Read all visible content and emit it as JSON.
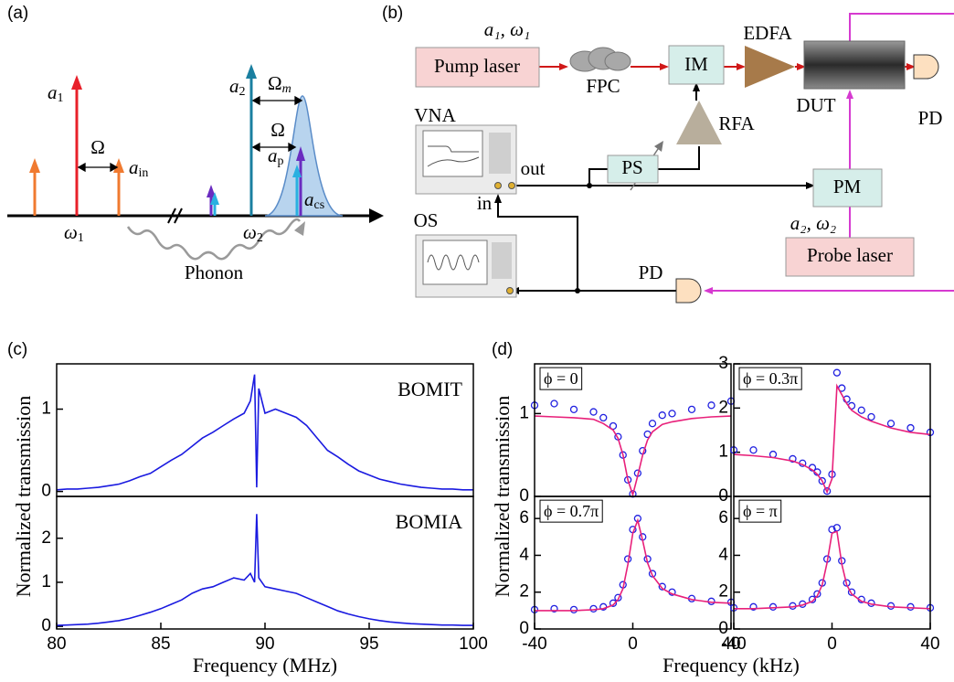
{
  "diagram_a": {
    "label": "(a)",
    "a1": {
      "main": "a",
      "sub": "1"
    },
    "Omega_left": "Ω",
    "a_in": {
      "main": "a",
      "sub": "in"
    },
    "omega1": {
      "main": "ω",
      "sub": "1"
    },
    "a2": {
      "main": "a",
      "sub": "2"
    },
    "Omega_m": {
      "main": "Ω",
      "sub": "m"
    },
    "Omega_right": "Ω",
    "a_p": {
      "main": "a",
      "sub": "p"
    },
    "a_cs": {
      "main": "a",
      "sub": "cs"
    },
    "omega2": {
      "main": "ω",
      "sub": "2"
    },
    "phonon": "Phonon"
  },
  "diagram_b": {
    "label": "(b)",
    "pump_params": "a₁, ω₁",
    "pump_laser": "Pump laser",
    "fpc": "FPC",
    "im": "IM",
    "edfa": "EDFA",
    "dut": "DUT",
    "pd_top": "PD",
    "rfa": "RFA",
    "vna": "VNA",
    "out": "out",
    "in": "in",
    "ps": "PS",
    "pm": "PM",
    "probe_params": "a₂, ω₂",
    "probe_laser": "Probe laser",
    "os": "OS",
    "pd_bottom": "PD"
  },
  "panels": {
    "c": {
      "label": "(c)",
      "ylabel": "Normalized transmission",
      "xlabel": "Frequency (MHz)"
    },
    "d": {
      "label": "(d)",
      "ylabel": "Normalized transmission",
      "xlabel": "Frequency (kHz)"
    }
  },
  "chart_data": [
    {
      "type": "line",
      "label": "BOMIT",
      "xlim": [
        80,
        100
      ],
      "ylim": [
        -0.06,
        1.55
      ],
      "yticks": [
        0,
        1
      ],
      "x": [
        80,
        80.5,
        81,
        81.5,
        82,
        82.5,
        83,
        83.5,
        84,
        84.5,
        85,
        85.5,
        86,
        86.5,
        87,
        87.5,
        88,
        88.5,
        89,
        89.3,
        89.5,
        89.6,
        89.7,
        90,
        90.5,
        91,
        91.5,
        92,
        92.5,
        93,
        93.5,
        94,
        94.5,
        95,
        95.5,
        96,
        96.5,
        97,
        97.5,
        98,
        98.5,
        99,
        99.5,
        100
      ],
      "series": [
        {
          "color": "#1a1ae0",
          "style": "line",
          "values": [
            0.02,
            0.03,
            0.03,
            0.04,
            0.05,
            0.07,
            0.09,
            0.13,
            0.18,
            0.22,
            0.3,
            0.38,
            0.45,
            0.55,
            0.65,
            0.72,
            0.8,
            0.88,
            0.95,
            1.1,
            1.42,
            0.05,
            1.25,
            0.95,
            1.0,
            0.95,
            0.9,
            0.8,
            0.65,
            0.5,
            0.42,
            0.33,
            0.25,
            0.2,
            0.15,
            0.12,
            0.09,
            0.07,
            0.05,
            0.04,
            0.03,
            0.03,
            0.02,
            0.02
          ]
        }
      ]
    },
    {
      "type": "line",
      "label": "BOMIA",
      "xlim": [
        80,
        100
      ],
      "ylim": [
        -0.06,
        2.95
      ],
      "yticks": [
        0,
        1,
        2
      ],
      "xticks": [
        80,
        85,
        90,
        95,
        100
      ],
      "x": [
        80,
        80.5,
        81,
        81.5,
        82,
        82.5,
        83,
        83.5,
        84,
        84.5,
        85,
        85.5,
        86,
        86.5,
        87,
        87.5,
        88,
        88.5,
        89,
        89.3,
        89.5,
        89.6,
        89.7,
        90,
        90.5,
        91,
        91.5,
        92,
        92.5,
        93,
        93.5,
        94,
        94.5,
        95,
        95.5,
        96,
        96.5,
        97,
        97.5,
        98,
        98.5,
        99,
        99.5,
        100
      ],
      "series": [
        {
          "color": "#1a1ae0",
          "style": "line",
          "values": [
            0.02,
            0.03,
            0.04,
            0.05,
            0.07,
            0.1,
            0.13,
            0.18,
            0.25,
            0.32,
            0.4,
            0.5,
            0.6,
            0.75,
            0.85,
            0.9,
            1.0,
            1.1,
            1.05,
            1.2,
            1.0,
            2.55,
            1.1,
            0.9,
            0.85,
            0.8,
            0.75,
            0.65,
            0.55,
            0.45,
            0.35,
            0.28,
            0.22,
            0.17,
            0.13,
            0.1,
            0.08,
            0.06,
            0.05,
            0.04,
            0.03,
            0.03,
            0.02,
            0.02
          ]
        }
      ]
    },
    {
      "type": "line",
      "label": "ϕ = 0",
      "xlim": [
        -40,
        40
      ],
      "ylim": [
        0,
        1.6
      ],
      "yticks": [
        0,
        1
      ],
      "x": [
        -40,
        -32,
        -24,
        -16,
        -12,
        -8,
        -6,
        -4,
        -2,
        0,
        2,
        4,
        6,
        8,
        12,
        16,
        24,
        32,
        40
      ],
      "series": [
        {
          "color": "#2020e0",
          "style": "markers",
          "values": [
            1.1,
            1.12,
            1.05,
            1.02,
            0.95,
            0.85,
            0.72,
            0.5,
            0.2,
            0.03,
            0.28,
            0.55,
            0.75,
            0.88,
            0.98,
            1.0,
            1.05,
            1.1,
            1.15
          ]
        },
        {
          "color": "#e8207a",
          "style": "line",
          "values": [
            0.97,
            0.96,
            0.95,
            0.93,
            0.88,
            0.8,
            0.7,
            0.5,
            0.2,
            0.02,
            0.25,
            0.5,
            0.68,
            0.78,
            0.87,
            0.9,
            0.94,
            0.96,
            0.97
          ]
        }
      ]
    },
    {
      "type": "line",
      "label": "ϕ = 0.3π",
      "xlim": [
        -40,
        40
      ],
      "ylim": [
        0,
        3
      ],
      "yticks": [
        0,
        1,
        2,
        3
      ],
      "x": [
        -40,
        -32,
        -24,
        -16,
        -12,
        -8,
        -6,
        -4,
        -2,
        0,
        2,
        4,
        6,
        8,
        12,
        16,
        24,
        32,
        40
      ],
      "series": [
        {
          "color": "#2020e0",
          "style": "markers",
          "values": [
            1.05,
            1.05,
            0.95,
            0.85,
            0.75,
            0.65,
            0.55,
            0.35,
            0.12,
            0.5,
            2.8,
            2.45,
            2.2,
            2.05,
            1.95,
            1.8,
            1.65,
            1.55,
            1.45
          ]
        },
        {
          "color": "#e8207a",
          "style": "line",
          "values": [
            0.95,
            0.92,
            0.88,
            0.8,
            0.72,
            0.6,
            0.5,
            0.35,
            0.1,
            0.4,
            2.5,
            2.3,
            2.1,
            1.95,
            1.8,
            1.7,
            1.55,
            1.45,
            1.4
          ]
        }
      ]
    },
    {
      "type": "line",
      "label": "ϕ = 0.7π",
      "xlim": [
        -40,
        40
      ],
      "ylim": [
        0,
        7.2
      ],
      "yticks": [
        0,
        2,
        4,
        6
      ],
      "xticks": [
        -40,
        0,
        40
      ],
      "x": [
        -40,
        -32,
        -24,
        -16,
        -12,
        -8,
        -6,
        -4,
        -2,
        0,
        2,
        4,
        6,
        8,
        12,
        16,
        24,
        32,
        40
      ],
      "series": [
        {
          "color": "#2020e0",
          "style": "markers",
          "values": [
            1.05,
            1.1,
            1.05,
            1.1,
            1.2,
            1.4,
            1.7,
            2.4,
            3.8,
            5.4,
            6.0,
            5.0,
            3.8,
            3.0,
            2.3,
            2.0,
            1.65,
            1.5,
            1.45
          ]
        },
        {
          "color": "#e8207a",
          "style": "line",
          "values": [
            1.0,
            1.0,
            1.0,
            1.05,
            1.1,
            1.3,
            1.6,
            2.2,
            3.5,
            5.2,
            5.9,
            4.8,
            3.6,
            2.9,
            2.2,
            1.9,
            1.6,
            1.45,
            1.4
          ]
        }
      ]
    },
    {
      "type": "line",
      "label": "ϕ = π",
      "xlim": [
        -40,
        40
      ],
      "ylim": [
        0,
        7.2
      ],
      "yticks": [
        0,
        2,
        4,
        6
      ],
      "xticks": [
        -40,
        0,
        40
      ],
      "x": [
        -40,
        -32,
        -24,
        -16,
        -12,
        -8,
        -6,
        -4,
        -2,
        0,
        2,
        4,
        6,
        8,
        12,
        16,
        24,
        32,
        40
      ],
      "series": [
        {
          "color": "#2020e0",
          "style": "markers",
          "values": [
            1.15,
            1.2,
            1.2,
            1.25,
            1.35,
            1.6,
            1.9,
            2.5,
            3.8,
            5.4,
            5.5,
            3.7,
            2.5,
            2.0,
            1.6,
            1.4,
            1.25,
            1.2,
            1.15
          ]
        },
        {
          "color": "#e8207a",
          "style": "line",
          "values": [
            1.1,
            1.1,
            1.15,
            1.2,
            1.3,
            1.5,
            1.8,
            2.4,
            3.6,
            5.2,
            5.3,
            3.5,
            2.4,
            1.9,
            1.5,
            1.35,
            1.2,
            1.15,
            1.1
          ]
        }
      ]
    }
  ]
}
